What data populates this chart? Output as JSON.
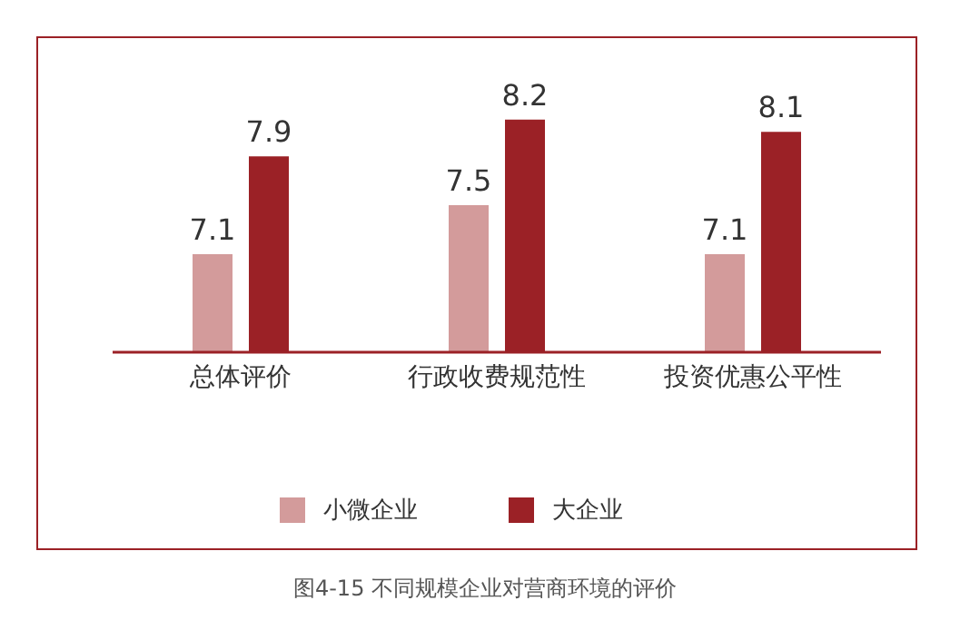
{
  "chart_data": {
    "type": "bar",
    "title": "图4-15 不同规模企业对营商环境的评价",
    "categories": [
      "总体评价",
      "行政收费规范性",
      "投资优惠公平性"
    ],
    "series": [
      {
        "name": "小微企业",
        "color": "#d39b9b",
        "values": [
          7.1,
          7.5,
          7.1
        ]
      },
      {
        "name": "大企业",
        "color": "#9b2126",
        "values": [
          7.9,
          8.2,
          8.1
        ]
      }
    ],
    "ylim": [
      6.3,
      8.85
    ],
    "tick_labels": "x",
    "data_labels": true,
    "legend": "bottom",
    "grid": false
  }
}
